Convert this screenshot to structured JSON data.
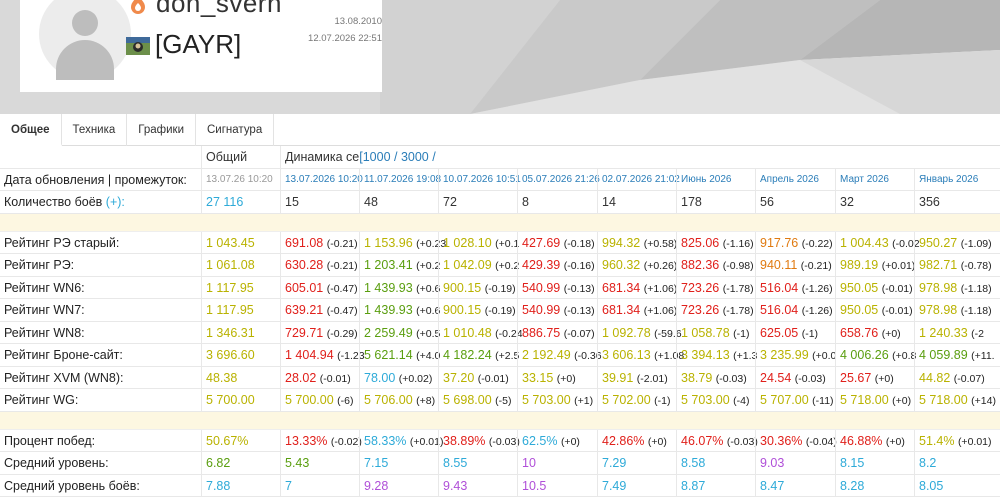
{
  "profile": {
    "nickname": "don_svern",
    "clan": "[GAYR]",
    "registered": "13.08.2010",
    "last_battle": "12.07.2026 22:51"
  },
  "tabs": [
    "Общее",
    "Техника",
    "Графики",
    "Сигнатура"
  ],
  "header": {
    "total_label": "Общий",
    "dynamics_label": "Динамика се",
    "range_label": "[1000 / 3000 /"
  },
  "columns": [
    "13.07.26 10:20",
    "13.07.2026 10:20",
    "11.07.2026 19:08",
    "10.07.2026 10:51",
    "05.07.2026 21:26",
    "02.07.2026 21:02",
    "Июнь 2026",
    "Апрель 2026",
    "Март 2026",
    "Январь 2026"
  ],
  "rows": [
    {
      "label": "Дата обновления | промежуток:",
      "type": "date"
    },
    {
      "label": "Количество боёв",
      "label_link": "(+):",
      "type": "battles",
      "cells": [
        {
          "v": "27 116",
          "c": "c"
        },
        {
          "v": "15",
          "c": "b"
        },
        {
          "v": "48",
          "c": "b"
        },
        {
          "v": "72",
          "c": "b"
        },
        {
          "v": "8",
          "c": "b"
        },
        {
          "v": "14",
          "c": "b"
        },
        {
          "v": "178",
          "c": "b"
        },
        {
          "v": "56",
          "c": "b"
        },
        {
          "v": "32",
          "c": "b"
        },
        {
          "v": "356",
          "c": "b"
        }
      ]
    },
    {
      "type": "sep"
    },
    {
      "label": "Рейтинг РЭ старый:",
      "cells": [
        {
          "v": "1 043.45",
          "c": "y"
        },
        {
          "v": "691.08",
          "d": "(-0.21)",
          "c": "r"
        },
        {
          "v": "1 153.96",
          "d": "(+0.23",
          "c": "y"
        },
        {
          "v": "1 028.10",
          "d": "(+0.1",
          "c": "y"
        },
        {
          "v": "427.69",
          "d": "(-0.18)",
          "c": "r"
        },
        {
          "v": "994.32",
          "d": "(+0.58)",
          "c": "y"
        },
        {
          "v": "825.06",
          "d": "(-1.16)",
          "c": "r"
        },
        {
          "v": "917.76",
          "d": "(-0.22)",
          "c": "o"
        },
        {
          "v": "1 004.43",
          "d": "(-0.02",
          "c": "y"
        },
        {
          "v": "950.27",
          "d": "(-1.09)",
          "c": "y"
        }
      ]
    },
    {
      "label": "Рейтинг РЭ:",
      "cells": [
        {
          "v": "1 061.08",
          "c": "y"
        },
        {
          "v": "630.28",
          "d": "(-0.21)",
          "c": "r"
        },
        {
          "v": "1 203.41",
          "d": "(+0.2",
          "c": "g"
        },
        {
          "v": "1 042.09",
          "d": "(+0.2",
          "c": "y"
        },
        {
          "v": "429.39",
          "d": "(-0.16)",
          "c": "r"
        },
        {
          "v": "960.32",
          "d": "(+0.26)",
          "c": "y"
        },
        {
          "v": "882.36",
          "d": "(-0.98)",
          "c": "r"
        },
        {
          "v": "940.11",
          "d": "(-0.21)",
          "c": "o"
        },
        {
          "v": "989.19",
          "d": "(+0.01)",
          "c": "y"
        },
        {
          "v": "982.71",
          "d": "(-0.78)",
          "c": "y"
        }
      ]
    },
    {
      "label": "Рейтинг WN6:",
      "cells": [
        {
          "v": "1 117.95",
          "c": "y"
        },
        {
          "v": "605.01",
          "d": "(-0.47)",
          "c": "r"
        },
        {
          "v": "1 439.93",
          "d": "(+0.6",
          "c": "g"
        },
        {
          "v": "900.15",
          "d": "(-0.19)",
          "c": "y"
        },
        {
          "v": "540.99",
          "d": "(-0.13)",
          "c": "r"
        },
        {
          "v": "681.34",
          "d": "(+1.06)",
          "c": "r"
        },
        {
          "v": "723.26",
          "d": "(-1.78)",
          "c": "r"
        },
        {
          "v": "516.04",
          "d": "(-1.26)",
          "c": "r"
        },
        {
          "v": "950.05",
          "d": "(-0.01)",
          "c": "y"
        },
        {
          "v": "978.98",
          "d": "(-1.18)",
          "c": "y"
        }
      ]
    },
    {
      "label": "Рейтинг WN7:",
      "cells": [
        {
          "v": "1 117.95",
          "c": "y"
        },
        {
          "v": "639.21",
          "d": "(-0.47)",
          "c": "r"
        },
        {
          "v": "1 439.93",
          "d": "(+0.6",
          "c": "g"
        },
        {
          "v": "900.15",
          "d": "(-0.19)",
          "c": "y"
        },
        {
          "v": "540.99",
          "d": "(-0.13)",
          "c": "r"
        },
        {
          "v": "681.34",
          "d": "(+1.06)",
          "c": "r"
        },
        {
          "v": "723.26",
          "d": "(-1.78)",
          "c": "r"
        },
        {
          "v": "516.04",
          "d": "(-1.26)",
          "c": "r"
        },
        {
          "v": "950.05",
          "d": "(-0.01)",
          "c": "y"
        },
        {
          "v": "978.98",
          "d": "(-1.18)",
          "c": "y"
        }
      ]
    },
    {
      "label": "Рейтинг WN8:",
      "cells": [
        {
          "v": "1 346.31",
          "c": "y"
        },
        {
          "v": "729.71",
          "d": "(-0.29)",
          "c": "r"
        },
        {
          "v": "2 259.49",
          "d": "(+0.5",
          "c": "g"
        },
        {
          "v": "1 010.48",
          "d": "(-0.24",
          "c": "y"
        },
        {
          "v": "886.75",
          "d": "(-0.07)",
          "c": "r"
        },
        {
          "v": "1 092.78",
          "d": "(-59.6",
          "c": "y"
        },
        {
          "v": "1 058.78",
          "d": "(-1)",
          "c": "y"
        },
        {
          "v": "625.05",
          "d": "(-1)",
          "c": "r"
        },
        {
          "v": "658.76",
          "d": "(+0)",
          "c": "r"
        },
        {
          "v": "1 240.33",
          "d": "(-2",
          "c": "y"
        }
      ]
    },
    {
      "label": "Рейтинг Броне-сайт:",
      "cells": [
        {
          "v": "3 696.60",
          "c": "y"
        },
        {
          "v": "1 404.94",
          "d": "(-1.23",
          "c": "r"
        },
        {
          "v": "5 621.14",
          "d": "(+4.0",
          "c": "g"
        },
        {
          "v": "4 182.24",
          "d": "(+2.5",
          "c": "g"
        },
        {
          "v": "2 192.49",
          "d": "(-0.36",
          "c": "y"
        },
        {
          "v": "3 606.13",
          "d": "(+1.08",
          "c": "y"
        },
        {
          "v": "3 394.13",
          "d": "(+1.3",
          "c": "y"
        },
        {
          "v": "3 235.99",
          "d": "(+0.0",
          "c": "y"
        },
        {
          "v": "4 006.26",
          "d": "(+0.8",
          "c": "g"
        },
        {
          "v": "4 059.89",
          "d": "(+11.",
          "c": "g"
        }
      ]
    },
    {
      "label": "Рейтинг XVM (WN8):",
      "cells": [
        {
          "v": "48.38",
          "c": "y"
        },
        {
          "v": "28.02",
          "d": "(-0.01)",
          "c": "r"
        },
        {
          "v": "78.00",
          "d": "(+0.02)",
          "c": "c"
        },
        {
          "v": "37.20",
          "d": "(-0.01)",
          "c": "y"
        },
        {
          "v": "33.15",
          "d": "(+0)",
          "c": "y"
        },
        {
          "v": "39.91",
          "d": "(-2.01)",
          "c": "y"
        },
        {
          "v": "38.79",
          "d": "(-0.03)",
          "c": "y"
        },
        {
          "v": "24.54",
          "d": "(-0.03)",
          "c": "r"
        },
        {
          "v": "25.67",
          "d": "(+0)",
          "c": "r"
        },
        {
          "v": "44.82",
          "d": "(-0.07)",
          "c": "y"
        }
      ]
    },
    {
      "label": "Рейтинг WG:",
      "cells": [
        {
          "v": "5 700.00",
          "c": "y"
        },
        {
          "v": "5 700.00",
          "d": "(-6)",
          "c": "y"
        },
        {
          "v": "5 706.00",
          "d": "(+8)",
          "c": "y"
        },
        {
          "v": "5 698.00",
          "d": "(-5)",
          "c": "y"
        },
        {
          "v": "5 703.00",
          "d": "(+1)",
          "c": "y"
        },
        {
          "v": "5 702.00",
          "d": "(-1)",
          "c": "y"
        },
        {
          "v": "5 703.00",
          "d": "(-4)",
          "c": "y"
        },
        {
          "v": "5 707.00",
          "d": "(-11)",
          "c": "y"
        },
        {
          "v": "5 718.00",
          "d": "(+0)",
          "c": "y"
        },
        {
          "v": "5 718.00",
          "d": "(+14)",
          "c": "y"
        }
      ]
    },
    {
      "type": "sep"
    },
    {
      "label": "Процент побед:",
      "cells": [
        {
          "v": "50.67%",
          "c": "y"
        },
        {
          "v": "13.33%",
          "d": "(-0.02)",
          "c": "r"
        },
        {
          "v": "58.33%",
          "d": "(+0.01)",
          "c": "c"
        },
        {
          "v": "38.89%",
          "d": "(-0.03)",
          "c": "r"
        },
        {
          "v": "62.5%",
          "d": "(+0)",
          "c": "c"
        },
        {
          "v": "42.86%",
          "d": "(+0)",
          "c": "r"
        },
        {
          "v": "46.07%",
          "d": "(-0.03)",
          "c": "r"
        },
        {
          "v": "30.36%",
          "d": "(-0.04)",
          "c": "r"
        },
        {
          "v": "46.88%",
          "d": "(+0)",
          "c": "r"
        },
        {
          "v": "51.4%",
          "d": "(+0.01)",
          "c": "y"
        }
      ]
    },
    {
      "label": "Средний уровень:",
      "cells": [
        {
          "v": "6.82",
          "c": "g"
        },
        {
          "v": "5.43",
          "c": "g"
        },
        {
          "v": "7.15",
          "c": "c"
        },
        {
          "v": "8.55",
          "c": "c"
        },
        {
          "v": "10",
          "c": "p"
        },
        {
          "v": "7.29",
          "c": "c"
        },
        {
          "v": "8.58",
          "c": "c"
        },
        {
          "v": "9.03",
          "c": "p"
        },
        {
          "v": "8.15",
          "c": "c"
        },
        {
          "v": "8.2",
          "c": "c"
        }
      ]
    },
    {
      "label": "Средний уровень боёв:",
      "cells": [
        {
          "v": "7.88",
          "c": "c"
        },
        {
          "v": "7",
          "c": "c"
        },
        {
          "v": "9.28",
          "c": "p"
        },
        {
          "v": "9.43",
          "c": "p"
        },
        {
          "v": "10.5",
          "c": "p"
        },
        {
          "v": "7.49",
          "c": "c"
        },
        {
          "v": "8.87",
          "c": "c"
        },
        {
          "v": "8.47",
          "c": "c"
        },
        {
          "v": "8.28",
          "c": "c"
        },
        {
          "v": "8.05",
          "c": "c"
        }
      ]
    }
  ]
}
